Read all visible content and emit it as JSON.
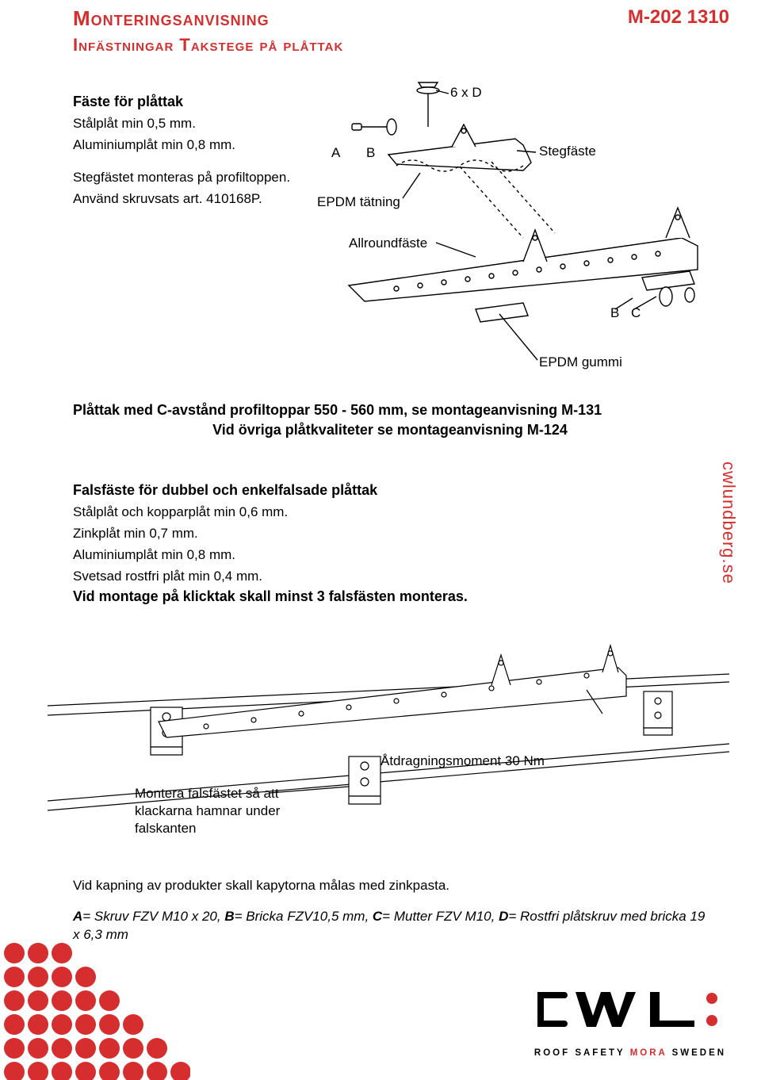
{
  "header": {
    "title_main": "Monteringsanvisning",
    "title_sub": "Infästningar Takstege på plåttak",
    "doc_code": "M-202 1310",
    "colors": {
      "accent": "#d62e2e",
      "text": "#000000",
      "bg": "#ffffff"
    }
  },
  "section1": {
    "heading": "Fäste för plåttak",
    "line1": "Stålplåt min 0,5 mm.",
    "line2": "Aluminiumplåt min 0,8 mm.",
    "line3": "Stegfästet monteras på profiltoppen.",
    "line4": "Använd skruvsats art. 410168P."
  },
  "diagram1": {
    "labels": {
      "A": "A",
      "B": "B",
      "C": "C",
      "sixD": "6 x D",
      "stegfaste": "Stegfäste",
      "epdm_tat": "EPDM tätning",
      "allround": "Allroundfäste",
      "epdm_gummi": "EPDM gummi",
      "B2": "B"
    },
    "style": {
      "stroke": "#000000",
      "stroke_width": 1.4,
      "dash": "4 4",
      "font_size": 17
    }
  },
  "mid": {
    "line1": "Plåttak med C-avstånd profiltoppar 550 - 560 mm, se montageanvisning M-131",
    "line2": "Vid övriga plåtkvaliteter se montageanvisning M-124"
  },
  "fals": {
    "heading": "Falsfäste för dubbel och enkelfalsade plåttak",
    "l1": "Stålplåt och kopparplåt min 0,6 mm.",
    "l2": "Zinkplåt min 0,7 mm.",
    "l3": "Aluminiumplåt min 0,8 mm.",
    "l4": "Svetsad rostfri plåt min 0,4 mm."
  },
  "note": {
    "text": "Vid montage på klicktak skall minst 3 falsfästen monteras."
  },
  "diagram2": {
    "caption1": "Åtdragningsmoment 30 Nm",
    "caption2": "Montera falsfästet så att klackarna hamnar under falskanten",
    "style": {
      "stroke": "#000000",
      "stroke_width": 1.2,
      "font_size": 17
    }
  },
  "footer": {
    "text": "Vid kapning av produkter skall kapytorna målas med zinkpasta."
  },
  "legend": {
    "A": "A",
    "A_txt": "= Skruv FZV M10 x 20, ",
    "B": "B",
    "B_txt": "= Bricka FZV10,5 mm, ",
    "C": "C",
    "C_txt": "= Mutter FZV M10, ",
    "D": "D",
    "D_txt": "= Rostfri plåtskruv med bricka 19 x 6,3 mm"
  },
  "side_url": "cwlundberg.se",
  "dot_art": {
    "color": "#d62e2e",
    "rows": 6,
    "cols": 8,
    "r": 13,
    "gap": 30
  },
  "logo": {
    "tag_prefix": "ROOF SAFETY ",
    "tag_accent": "MORA",
    "tag_suffix": " SWEDEN",
    "accent": "#d62e2e"
  }
}
